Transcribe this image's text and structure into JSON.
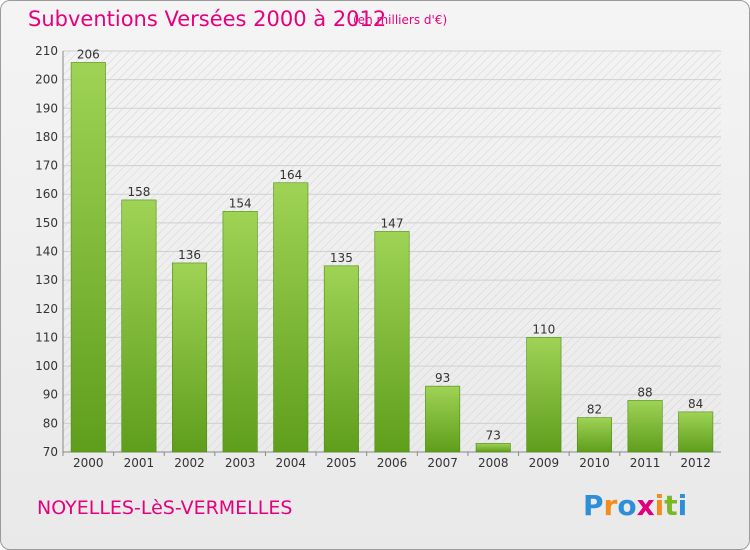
{
  "header": {
    "title": "Subventions Versées 2000 à 2012",
    "subtitle": "(en milliers d'€)"
  },
  "footer": {
    "commune": "NOYELLES-LèS-VERMELLES",
    "brand": "Proxiti",
    "brand_letters": [
      {
        "ch": "P",
        "color": "#2e8fd6"
      },
      {
        "ch": "r",
        "color": "#f28c1e"
      },
      {
        "ch": "o",
        "color": "#2e8fd6"
      },
      {
        "ch": "x",
        "color": "#e2007a"
      },
      {
        "ch": "i",
        "color": "#f28c1e"
      },
      {
        "ch": "t",
        "color": "#7ab829"
      },
      {
        "ch": "i",
        "color": "#2e8fd6"
      }
    ]
  },
  "colors": {
    "accent": "#e6007e",
    "bar_top": "#9fd356",
    "bar_bottom": "#5f9e1c",
    "grid": "#cfcfcf",
    "axis_text": "#333333"
  },
  "chart_data": {
    "type": "bar",
    "title": "Subventions Versées 2000 à 2012",
    "subtitle": "(en milliers d'€)",
    "categories": [
      "2000",
      "2001",
      "2002",
      "2003",
      "2004",
      "2005",
      "2006",
      "2007",
      "2008",
      "2009",
      "2010",
      "2011",
      "2012"
    ],
    "values": [
      206,
      158,
      136,
      154,
      164,
      135,
      147,
      93,
      73,
      110,
      82,
      88,
      84
    ],
    "data_labels": [
      "206",
      "158",
      "136",
      "154",
      "164",
      "135",
      "147",
      "93",
      "73",
      "110",
      "82",
      "88",
      "84"
    ],
    "ylim": [
      70,
      210
    ],
    "yticks": [
      70,
      80,
      90,
      100,
      110,
      120,
      130,
      140,
      150,
      160,
      170,
      180,
      190,
      200,
      210
    ],
    "ytick_labels": [
      "70",
      "80",
      "90",
      "100",
      "110",
      "120",
      "130",
      "140",
      "150",
      "160",
      "170",
      "180",
      "190",
      "200",
      "210"
    ],
    "grid": true,
    "xlabel": "",
    "ylabel": ""
  }
}
